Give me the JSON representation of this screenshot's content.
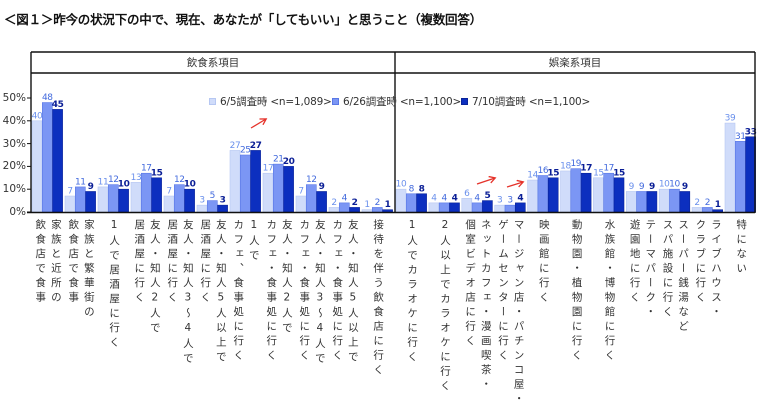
{
  "title": "＜図１＞昨今の状況下の中で、現在、あなたが「してもいい」と思うこと（複数回答）",
  "chart_data": {
    "type": "bar",
    "title": "＜図１＞昨今の状況下の中で、現在、あなたが「してもいい」と思うこと（複数回答）",
    "xlabel": "",
    "ylabel": "",
    "ylim": [
      0,
      55
    ],
    "yticks": [
      "0%",
      "10%",
      "20%",
      "30%",
      "40%",
      "50%"
    ],
    "ytick_values": [
      0,
      10,
      20,
      30,
      40,
      50
    ],
    "grid": false,
    "legend_position": "top, inside plot area",
    "panels": [
      {
        "title": "飲食系項目",
        "category_start": 0,
        "category_count": 11
      },
      {
        "title": "娯楽系項目",
        "category_start": 11,
        "category_count": 11
      }
    ],
    "categories": [
      "家族と近所の飲食店で食事",
      "家族と繁華街の飲食店で食事",
      "1人で居酒屋に行く",
      "友人・知人2人で居酒屋に行く",
      "友人・知人3～4人で居酒屋に行く",
      "友人・知人5人以上で居酒屋に行く",
      "1人でカフェ、食事処に行く",
      "友人・知人2人でカフェ・食事処に行く",
      "友人・知人3～4人でカフェ・食事処に行く",
      "友人・知人5人以上でカフェ・食事処に行く",
      "接待を伴う飲食店に行く",
      "1人でカラオケに行く",
      "2人以上でカラオケに行く",
      "ネットカフェ・漫画喫茶・個室ビデオ店に行く",
      "マージャン店・パチンコ屋・ゲームセンターに行く",
      "映画館に行く",
      "動物園・植物園に行く",
      "水族館・博物館に行く",
      "テーマパーク・遊園地に行く",
      "スーパー銭湯などスパ施設に行く",
      "ライブハウス・クラブに行く",
      "特にない"
    ],
    "category_label_lines": [
      [
        "家族と近所の",
        "飲食店で食事"
      ],
      [
        "家族と繁華街の",
        "飲食店で食事"
      ],
      [
        "1人で居酒屋に行く"
      ],
      [
        "友人・知人2人で",
        "居酒屋に行く"
      ],
      [
        "友人・知人3～4人で",
        "居酒屋に行く"
      ],
      [
        "友人・知人5人以上で",
        "居酒屋に行く"
      ],
      [
        "1人で",
        "カフェ、食事処に行く"
      ],
      [
        "友人・知人2人で",
        "カフェ・食事処に行く"
      ],
      [
        "友人・知人3～4人で",
        "カフェ・食事処に行く"
      ],
      [
        "友人・知人5人以上で",
        "カフェ・食事処に行く"
      ],
      [
        "接待を伴う飲食店に行く"
      ],
      [
        "1人でカラオケに行く"
      ],
      [
        "2人以上でカラオケに行く"
      ],
      [
        "ネットカフェ・漫画喫茶・",
        "個室ビデオ店に行く"
      ],
      [
        "マージャン店・パチンコ屋・",
        "ゲームセンターに行く"
      ],
      [
        "映画館に行く"
      ],
      [
        "動物園・植物園に行く"
      ],
      [
        "水族館・博物館に行く"
      ],
      [
        "テーマパーク・",
        "遊園地に行く"
      ],
      [
        "スーパー銭湯など",
        "スパ施設に行く"
      ],
      [
        "ライブハウス・",
        "クラブに行く"
      ],
      [
        "特にない"
      ]
    ],
    "series": [
      {
        "name": "6/5調査時 <n=1,089>",
        "color": "#d0dcfa",
        "edge_color": "#b6c7f2",
        "label_color": "#6a90ec",
        "values": [
          40,
          7,
          11,
          13,
          7,
          3,
          27,
          17,
          7,
          2,
          1,
          10,
          4,
          6,
          3,
          14,
          18,
          15,
          9,
          10,
          2,
          39
        ]
      },
      {
        "name": "6/26調査時 <n=1,100>",
        "color": "#7b96f4",
        "edge_color": "#5a78e6",
        "label_color": "#4169dd",
        "values": [
          48,
          11,
          12,
          17,
          12,
          5,
          25,
          21,
          12,
          4,
          2,
          8,
          4,
          4,
          3,
          16,
          19,
          17,
          9,
          10,
          2,
          31
        ]
      },
      {
        "name": "7/10調査時 <n=1,100>",
        "color": "#0c2fbf",
        "edge_color": "#0a2499",
        "label_color": "#0a1e96",
        "values": [
          45,
          9,
          10,
          15,
          10,
          3,
          27,
          20,
          9,
          2,
          1,
          8,
          4,
          5,
          4,
          15,
          17,
          15,
          9,
          9,
          1,
          33
        ]
      }
    ],
    "annotations": [
      {
        "type": "arrow",
        "meaning": "upward trend",
        "near_category": "1人でカフェ、食事処に行く",
        "color": "#e5322a",
        "from": [
          251,
          128
        ],
        "to": [
          266,
          119
        ]
      },
      {
        "type": "arrow",
        "meaning": "upward trend",
        "near_category": "ネットカフェ・漫画喫茶・個室ビデオ店に行く",
        "color": "#e5322a",
        "from": [
          477,
          184
        ],
        "to": [
          495,
          178
        ]
      },
      {
        "type": "arrow",
        "meaning": "upward trend",
        "near_category": "マージャン店・パチンコ屋・ゲームセンターに行く",
        "color": "#e5322a",
        "from": [
          507,
          187
        ],
        "to": [
          523,
          182
        ]
      }
    ]
  }
}
